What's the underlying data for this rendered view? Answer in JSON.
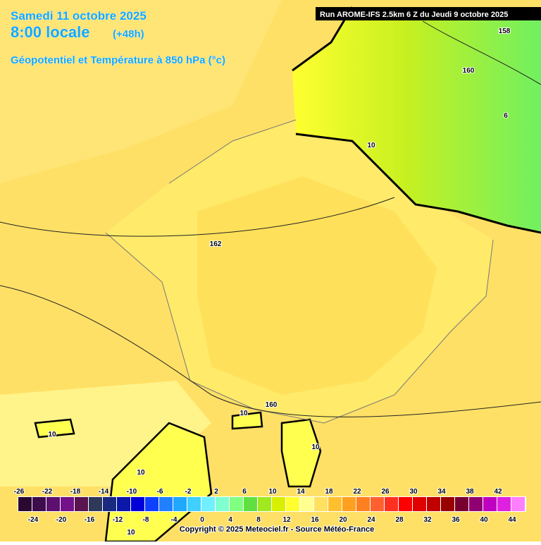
{
  "header": {
    "date": "Samedi 11 octobre 2025",
    "time": "8:00 locale",
    "lead": "(+48h)",
    "field": "Géopotentiel et Température à 850 hPa (°c)",
    "run": "Run AROME-IFS 2.5km 6 Z du Jeudi 9 octobre 2025"
  },
  "map": {
    "contour_labels": [
      "158",
      "160",
      "6",
      "10",
      "162",
      "160",
      "10",
      "10",
      "10",
      "10",
      "10"
    ]
  },
  "colorbar": {
    "ticks": [
      -26,
      -24,
      -22,
      -20,
      -18,
      -16,
      -14,
      -12,
      -10,
      -8,
      -6,
      -4,
      -2,
      0,
      2,
      4,
      6,
      8,
      10,
      12,
      14,
      16,
      18,
      20,
      22,
      24,
      26,
      28,
      30,
      32,
      34,
      36,
      38,
      40,
      42,
      44
    ],
    "colors": [
      "#2a0830",
      "#3e0c4c",
      "#5c1070",
      "#74128a",
      "#5a1450",
      "#2e3858",
      "#1a2a80",
      "#0c18a8",
      "#0000d8",
      "#1040ff",
      "#2080ff",
      "#20a8ff",
      "#40d0ff",
      "#70f0ff",
      "#80ffd0",
      "#80ff80",
      "#60e040",
      "#a0e820",
      "#d8f000",
      "#ffff30",
      "#ffff90",
      "#ffe060",
      "#ffc030",
      "#ffa020",
      "#ff8020",
      "#ff6030",
      "#ff3020",
      "#ff0000",
      "#e00000",
      "#c00000",
      "#980000",
      "#780030",
      "#900070",
      "#c000c0",
      "#e020e0",
      "#ff80ff"
    ]
  },
  "footer": {
    "copyright": "Copyright © 2025 Meteociel.fr - Source Météo-France"
  }
}
